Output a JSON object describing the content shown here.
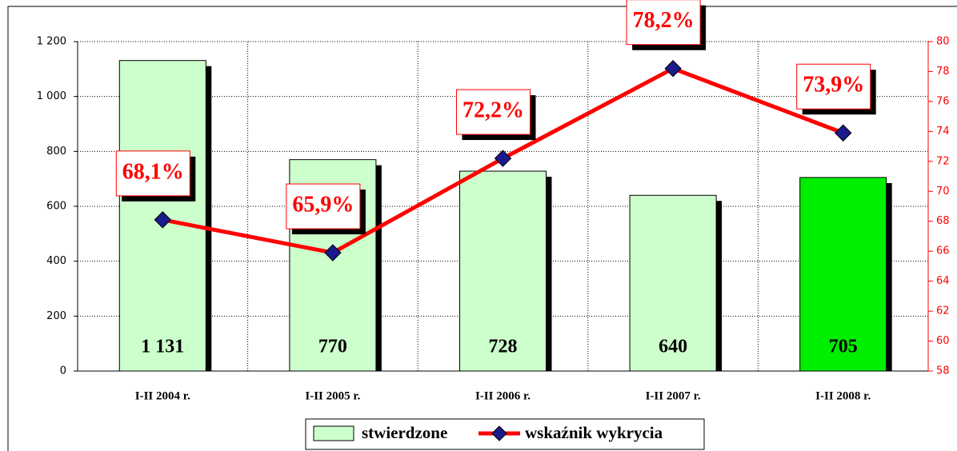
{
  "chart_data": {
    "type": "bar_line",
    "categories": [
      "I-II 2004 r.",
      "I-II 2005 r.",
      "I-II 2006 r.",
      "I-II 2007 r.",
      "I-II 2008 r."
    ],
    "series": [
      {
        "name": "stwierdzone",
        "type": "bar",
        "color": "#ccffcc",
        "colors": [
          "#ccffcc",
          "#ccffcc",
          "#ccffcc",
          "#ccffcc",
          "#00ee00"
        ],
        "values": [
          1131,
          770,
          728,
          640,
          705
        ],
        "value_labels": [
          "1 131",
          "770",
          "728",
          "640",
          "705"
        ]
      },
      {
        "name": "wskaźnik wykrycia",
        "type": "line",
        "axis": "y2",
        "color": "#ff0000",
        "marker_color": "#1a1a8c",
        "values": [
          68.1,
          65.9,
          72.2,
          78.2,
          73.9
        ],
        "value_labels": [
          "68,1%",
          "65,9%",
          "72,2%",
          "78,2%",
          "73,9%"
        ]
      }
    ],
    "ylim": [
      0,
      1200
    ],
    "yticks": [
      0,
      200,
      400,
      600,
      800,
      {
        "value": 1000,
        "label": "1 000"
      },
      {
        "value": 1200,
        "label": "1 200"
      }
    ],
    "y2lim": [
      58,
      80
    ],
    "y2ticks": [
      58,
      60,
      62,
      64,
      66,
      68,
      70,
      72,
      74,
      76,
      78,
      80
    ],
    "grid": true,
    "legend": "bottom"
  }
}
